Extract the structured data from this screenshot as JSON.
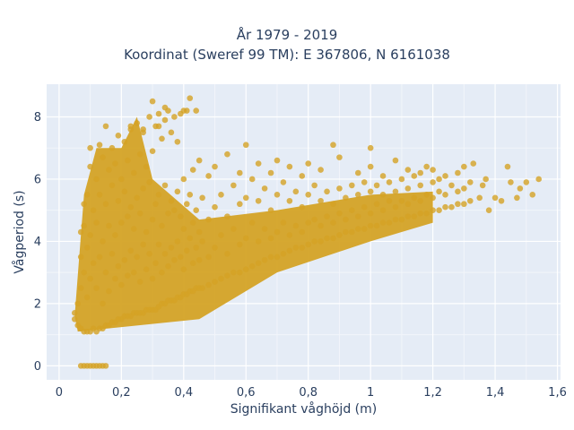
{
  "chart_data": {
    "type": "scatter",
    "title": "År 1979 - 2019",
    "subtitle": "Koordinat (Sweref 99 TM): E 367806, N 6161038",
    "xlabel": "Signifikant våghöjd (m)",
    "ylabel": "Vågperiod (s)",
    "xlim": [
      -0.04,
      1.61
    ],
    "ylim": [
      -0.45,
      9.05
    ],
    "xticks": [
      0,
      0.2,
      0.4,
      0.6,
      0.8,
      1,
      1.2,
      1.4,
      1.6
    ],
    "xtick_labels": [
      "0",
      "0,2",
      "0,4",
      "0,6",
      "0,8",
      "1",
      "1,2",
      "1,4",
      "1,6"
    ],
    "yticks": [
      0,
      2,
      4,
      6,
      8
    ],
    "ytick_labels": [
      "0",
      "2",
      "4",
      "6",
      "8"
    ],
    "grid": true,
    "marker_color": "#d4a326",
    "plot_background": "#e5ecf6",
    "points": [
      [
        0.07,
        0
      ],
      [
        0.08,
        0
      ],
      [
        0.09,
        0
      ],
      [
        0.1,
        0
      ],
      [
        0.11,
        0
      ],
      [
        0.12,
        0
      ],
      [
        0.13,
        0
      ],
      [
        0.14,
        0
      ],
      [
        0.15,
        0
      ],
      [
        0.05,
        1.5
      ],
      [
        0.05,
        1.7
      ],
      [
        0.06,
        1.3
      ],
      [
        0.06,
        2.0
      ],
      [
        0.07,
        1.2
      ],
      [
        0.07,
        2.5
      ],
      [
        0.07,
        3.5
      ],
      [
        0.07,
        4.3
      ],
      [
        0.08,
        1.1
      ],
      [
        0.08,
        3.0
      ],
      [
        0.08,
        4.5
      ],
      [
        0.08,
        5.2
      ],
      [
        0.09,
        1.1
      ],
      [
        0.09,
        2.2
      ],
      [
        0.09,
        3.8
      ],
      [
        0.09,
        5.5
      ],
      [
        0.1,
        1.1
      ],
      [
        0.1,
        2.8
      ],
      [
        0.1,
        4.2
      ],
      [
        0.1,
        6.4
      ],
      [
        0.1,
        7.0
      ],
      [
        0.11,
        1.2
      ],
      [
        0.11,
        3.3
      ],
      [
        0.11,
        5.0
      ],
      [
        0.12,
        1.1
      ],
      [
        0.12,
        2.5
      ],
      [
        0.12,
        4.6
      ],
      [
        0.12,
        6.0
      ],
      [
        0.13,
        1.2
      ],
      [
        0.13,
        3.5
      ],
      [
        0.13,
        5.5
      ],
      [
        0.13,
        7.1
      ],
      [
        0.14,
        1.2
      ],
      [
        0.14,
        2.0
      ],
      [
        0.14,
        4.0
      ],
      [
        0.14,
        6.7
      ],
      [
        0.15,
        1.3
      ],
      [
        0.15,
        3.0
      ],
      [
        0.15,
        5.2
      ],
      [
        0.15,
        7.7
      ],
      [
        0.16,
        1.3
      ],
      [
        0.16,
        2.4
      ],
      [
        0.16,
        4.5
      ],
      [
        0.16,
        6.3
      ],
      [
        0.17,
        1.4
      ],
      [
        0.17,
        3.6
      ],
      [
        0.17,
        5.8
      ],
      [
        0.17,
        7.0
      ],
      [
        0.18,
        1.4
      ],
      [
        0.18,
        2.8
      ],
      [
        0.18,
        4.2
      ],
      [
        0.18,
        6.5
      ],
      [
        0.19,
        1.5
      ],
      [
        0.19,
        3.2
      ],
      [
        0.19,
        5.3
      ],
      [
        0.19,
        7.4
      ],
      [
        0.2,
        1.5
      ],
      [
        0.2,
        2.6
      ],
      [
        0.2,
        4.6
      ],
      [
        0.2,
        6.0
      ],
      [
        0.21,
        1.6
      ],
      [
        0.21,
        3.4
      ],
      [
        0.21,
        5.6
      ],
      [
        0.21,
        7.2
      ],
      [
        0.22,
        1.6
      ],
      [
        0.22,
        2.9
      ],
      [
        0.22,
        4.8
      ],
      [
        0.22,
        6.6
      ],
      [
        0.23,
        1.6
      ],
      [
        0.23,
        3.7
      ],
      [
        0.23,
        5.1
      ],
      [
        0.23,
        7.6
      ],
      [
        0.24,
        1.7
      ],
      [
        0.24,
        3.0
      ],
      [
        0.24,
        4.4
      ],
      [
        0.24,
        6.2
      ],
      [
        0.25,
        1.7
      ],
      [
        0.25,
        3.5
      ],
      [
        0.25,
        5.4
      ],
      [
        0.25,
        7.8
      ],
      [
        0.26,
        1.7
      ],
      [
        0.26,
        2.7
      ],
      [
        0.26,
        4.9
      ],
      [
        0.26,
        6.8
      ],
      [
        0.27,
        1.7
      ],
      [
        0.27,
        3.9
      ],
      [
        0.27,
        5.7
      ],
      [
        0.27,
        7.5
      ],
      [
        0.28,
        1.8
      ],
      [
        0.28,
        3.1
      ],
      [
        0.28,
        4.3
      ],
      [
        0.28,
        6.4
      ],
      [
        0.29,
        1.8
      ],
      [
        0.29,
        3.6
      ],
      [
        0.29,
        5.9
      ],
      [
        0.29,
        8.0
      ],
      [
        0.3,
        1.8
      ],
      [
        0.3,
        2.8
      ],
      [
        0.3,
        4.7
      ],
      [
        0.3,
        6.9
      ],
      [
        0.31,
        1.8
      ],
      [
        0.31,
        3.3
      ],
      [
        0.31,
        5.2
      ],
      [
        0.31,
        7.7
      ],
      [
        0.32,
        1.9
      ],
      [
        0.32,
        3.9
      ],
      [
        0.32,
        5.5
      ],
      [
        0.32,
        8.1
      ],
      [
        0.33,
        2.0
      ],
      [
        0.33,
        3.0
      ],
      [
        0.33,
        4.5
      ],
      [
        0.33,
        7.3
      ],
      [
        0.34,
        2.0
      ],
      [
        0.34,
        3.6
      ],
      [
        0.34,
        5.8
      ],
      [
        0.34,
        7.9
      ],
      [
        0.35,
        2.1
      ],
      [
        0.35,
        3.2
      ],
      [
        0.35,
        4.9
      ],
      [
        0.35,
        8.2
      ],
      [
        0.36,
        2.1
      ],
      [
        0.36,
        3.8
      ],
      [
        0.36,
        5.3
      ],
      [
        0.36,
        7.5
      ],
      [
        0.37,
        2.1
      ],
      [
        0.37,
        3.4
      ],
      [
        0.37,
        5.0
      ],
      [
        0.37,
        8.0
      ],
      [
        0.38,
        2.2
      ],
      [
        0.38,
        4.0
      ],
      [
        0.38,
        5.6
      ],
      [
        0.38,
        7.2
      ],
      [
        0.39,
        2.2
      ],
      [
        0.39,
        3.5
      ],
      [
        0.39,
        4.8
      ],
      [
        0.39,
        8.1
      ],
      [
        0.4,
        2.3
      ],
      [
        0.4,
        3.1
      ],
      [
        0.4,
        4.4
      ],
      [
        0.4,
        6.0
      ],
      [
        0.41,
        2.3
      ],
      [
        0.41,
        3.7
      ],
      [
        0.41,
        5.2
      ],
      [
        0.41,
        8.2
      ],
      [
        0.42,
        2.4
      ],
      [
        0.42,
        4.1
      ],
      [
        0.42,
        5.5
      ],
      [
        0.43,
        2.4
      ],
      [
        0.43,
        3.3
      ],
      [
        0.43,
        4.6
      ],
      [
        0.43,
        6.3
      ],
      [
        0.44,
        2.5
      ],
      [
        0.44,
        3.8
      ],
      [
        0.44,
        5.0
      ],
      [
        0.45,
        2.5
      ],
      [
        0.45,
        3.4
      ],
      [
        0.45,
        4.3
      ],
      [
        0.45,
        6.6
      ],
      [
        0.3,
        8.5
      ],
      [
        0.34,
        8.3
      ],
      [
        0.4,
        8.2
      ],
      [
        0.42,
        8.6
      ],
      [
        0.44,
        8.2
      ],
      [
        0.23,
        7.7
      ],
      [
        0.27,
        7.6
      ],
      [
        0.32,
        7.7
      ],
      [
        0.46,
        2.5
      ],
      [
        0.46,
        4.0
      ],
      [
        0.46,
        5.4
      ],
      [
        0.48,
        2.6
      ],
      [
        0.48,
        3.5
      ],
      [
        0.48,
        4.7
      ],
      [
        0.48,
        6.1
      ],
      [
        0.5,
        2.7
      ],
      [
        0.5,
        3.8
      ],
      [
        0.5,
        5.1
      ],
      [
        0.5,
        6.4
      ],
      [
        0.52,
        2.8
      ],
      [
        0.52,
        4.2
      ],
      [
        0.52,
        5.5
      ],
      [
        0.54,
        2.9
      ],
      [
        0.54,
        3.6
      ],
      [
        0.54,
        4.8
      ],
      [
        0.54,
        6.8
      ],
      [
        0.56,
        3.0
      ],
      [
        0.56,
        4.4
      ],
      [
        0.56,
        5.8
      ],
      [
        0.58,
        3.0
      ],
      [
        0.58,
        3.9
      ],
      [
        0.58,
        5.2
      ],
      [
        0.58,
        6.2
      ],
      [
        0.6,
        3.1
      ],
      [
        0.6,
        4.1
      ],
      [
        0.6,
        5.4
      ],
      [
        0.6,
        7.1
      ],
      [
        0.62,
        3.2
      ],
      [
        0.62,
        4.6
      ],
      [
        0.62,
        6.0
      ],
      [
        0.64,
        3.3
      ],
      [
        0.64,
        4.0
      ],
      [
        0.64,
        5.3
      ],
      [
        0.64,
        6.5
      ],
      [
        0.66,
        3.4
      ],
      [
        0.66,
        4.4
      ],
      [
        0.66,
        5.7
      ],
      [
        0.68,
        3.5
      ],
      [
        0.68,
        4.1
      ],
      [
        0.68,
        5.0
      ],
      [
        0.68,
        6.2
      ],
      [
        0.7,
        3.5
      ],
      [
        0.7,
        4.3
      ],
      [
        0.7,
        5.5
      ],
      [
        0.7,
        6.6
      ],
      [
        0.72,
        3.6
      ],
      [
        0.72,
        4.6
      ],
      [
        0.72,
        5.9
      ],
      [
        0.74,
        3.7
      ],
      [
        0.74,
        4.2
      ],
      [
        0.74,
        5.3
      ],
      [
        0.74,
        6.4
      ],
      [
        0.76,
        3.8
      ],
      [
        0.76,
        4.5
      ],
      [
        0.76,
        5.6
      ],
      [
        0.78,
        3.8
      ],
      [
        0.78,
        4.3
      ],
      [
        0.78,
        5.1
      ],
      [
        0.78,
        6.1
      ],
      [
        0.8,
        3.9
      ],
      [
        0.8,
        4.6
      ],
      [
        0.8,
        5.5
      ],
      [
        0.8,
        6.5
      ],
      [
        0.82,
        4.0
      ],
      [
        0.82,
        4.7
      ],
      [
        0.82,
        5.8
      ],
      [
        0.84,
        4.0
      ],
      [
        0.84,
        4.5
      ],
      [
        0.84,
        5.3
      ],
      [
        0.84,
        6.3
      ],
      [
        0.86,
        4.1
      ],
      [
        0.86,
        4.8
      ],
      [
        0.86,
        5.6
      ],
      [
        0.88,
        4.1
      ],
      [
        0.88,
        4.6
      ],
      [
        0.88,
        5.2
      ],
      [
        0.88,
        7.1
      ],
      [
        0.9,
        4.2
      ],
      [
        0.9,
        4.9
      ],
      [
        0.9,
        5.7
      ],
      [
        0.9,
        6.7
      ],
      [
        0.92,
        4.3
      ],
      [
        0.92,
        4.7
      ],
      [
        0.92,
        5.4
      ],
      [
        0.94,
        4.3
      ],
      [
        0.94,
        5.0
      ],
      [
        0.94,
        5.8
      ],
      [
        0.96,
        4.4
      ],
      [
        0.96,
        4.8
      ],
      [
        0.96,
        5.5
      ],
      [
        0.96,
        6.2
      ],
      [
        0.98,
        4.4
      ],
      [
        0.98,
        5.1
      ],
      [
        0.98,
        5.9
      ],
      [
        1.0,
        4.5
      ],
      [
        1.0,
        4.9
      ],
      [
        1.0,
        5.6
      ],
      [
        1.0,
        6.4
      ],
      [
        1.0,
        7.0
      ],
      [
        1.02,
        4.5
      ],
      [
        1.02,
        5.2
      ],
      [
        1.02,
        5.8
      ],
      [
        1.04,
        4.6
      ],
      [
        1.04,
        5.0
      ],
      [
        1.04,
        5.5
      ],
      [
        1.04,
        6.1
      ],
      [
        1.06,
        4.6
      ],
      [
        1.06,
        5.3
      ],
      [
        1.06,
        5.9
      ],
      [
        1.08,
        4.7
      ],
      [
        1.08,
        5.1
      ],
      [
        1.08,
        5.6
      ],
      [
        1.08,
        6.6
      ],
      [
        1.1,
        4.7
      ],
      [
        1.1,
        5.3
      ],
      [
        1.1,
        6.0
      ],
      [
        1.12,
        4.8
      ],
      [
        1.12,
        5.2
      ],
      [
        1.12,
        5.7
      ],
      [
        1.12,
        6.3
      ],
      [
        1.14,
        4.8
      ],
      [
        1.14,
        5.4
      ],
      [
        1.14,
        6.1
      ],
      [
        1.16,
        4.9
      ],
      [
        1.16,
        5.3
      ],
      [
        1.16,
        5.8
      ],
      [
        1.16,
        6.2
      ],
      [
        1.18,
        4.9
      ],
      [
        1.18,
        5.5
      ],
      [
        1.18,
        6.4
      ],
      [
        1.2,
        5.0
      ],
      [
        1.2,
        5.4
      ],
      [
        1.2,
        5.9
      ],
      [
        1.2,
        6.3
      ],
      [
        1.22,
        5.0
      ],
      [
        1.22,
        5.6
      ],
      [
        1.22,
        6.0
      ],
      [
        1.24,
        5.1
      ],
      [
        1.24,
        5.5
      ],
      [
        1.24,
        6.1
      ],
      [
        1.26,
        5.1
      ],
      [
        1.26,
        5.8
      ],
      [
        1.28,
        5.2
      ],
      [
        1.28,
        5.6
      ],
      [
        1.28,
        6.2
      ],
      [
        1.3,
        5.2
      ],
      [
        1.3,
        5.7
      ],
      [
        1.3,
        6.4
      ],
      [
        1.32,
        5.3
      ],
      [
        1.32,
        5.9
      ],
      [
        1.33,
        6.5
      ],
      [
        1.35,
        5.4
      ],
      [
        1.36,
        5.8
      ],
      [
        1.37,
        6.0
      ],
      [
        1.38,
        5.0
      ],
      [
        1.4,
        5.4
      ],
      [
        1.42,
        5.3
      ],
      [
        1.44,
        6.4
      ],
      [
        1.45,
        5.9
      ],
      [
        1.47,
        5.4
      ],
      [
        1.48,
        5.7
      ],
      [
        1.5,
        5.9
      ],
      [
        1.52,
        5.5
      ],
      [
        1.54,
        6.0
      ]
    ]
  }
}
